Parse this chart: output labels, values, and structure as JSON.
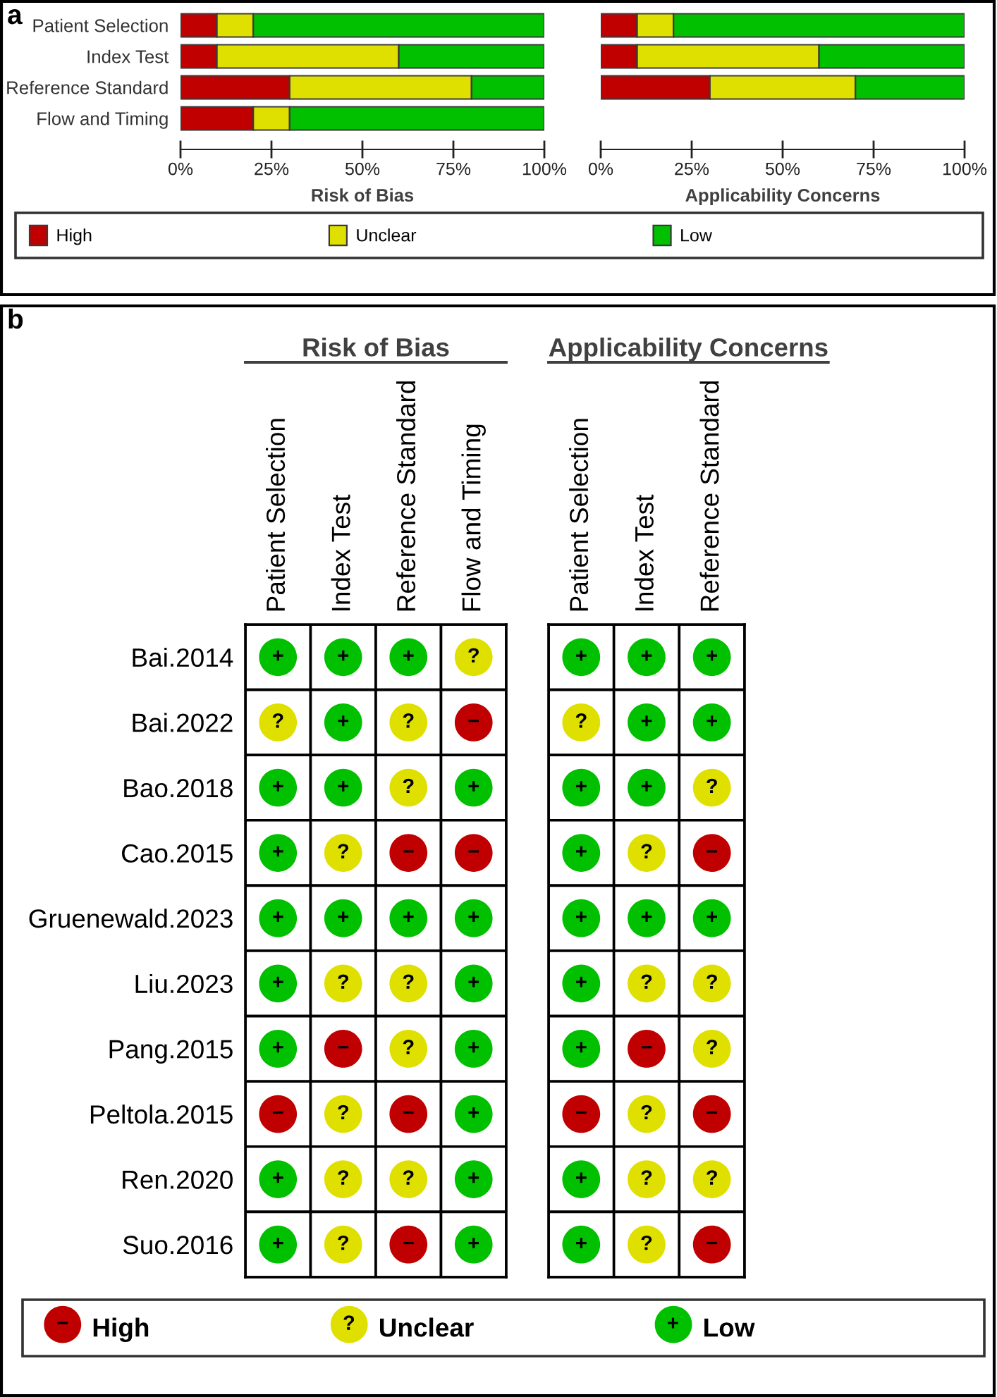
{
  "chart_data": [
    {
      "type": "bar",
      "orientation": "horizontal",
      "stacked": true,
      "categories": [
        "Patient Selection",
        "Index Test",
        "Reference Standard",
        "Flow and Timing"
      ],
      "series": [
        {
          "name": "High",
          "color": "#c00000",
          "values": [
            10,
            10,
            30,
            20
          ]
        },
        {
          "name": "Unclear",
          "color": "#e0e000",
          "values": [
            10,
            50,
            50,
            10
          ]
        },
        {
          "name": "Low",
          "color": "#00c000",
          "values": [
            80,
            40,
            20,
            70
          ]
        }
      ],
      "xlim": [
        0,
        100
      ],
      "xticks": [
        {
          "value": 0,
          "label": "0%"
        },
        {
          "value": 25,
          "label": "25%"
        },
        {
          "value": 50,
          "label": "50%"
        },
        {
          "value": 75,
          "label": "75%"
        },
        {
          "value": 100,
          "label": "100%"
        }
      ],
      "xlabel": "Risk of Bias",
      "legend": "bottom",
      "annotations": [
        "a"
      ]
    },
    {
      "type": "bar",
      "orientation": "horizontal",
      "stacked": true,
      "categories": [
        null,
        null,
        null,
        null
      ],
      "series": [
        {
          "color": "#c00000",
          "values": [
            10,
            10,
            30,
            null
          ]
        },
        {
          "color": "#e0e000",
          "values": [
            10,
            50,
            40,
            null
          ]
        },
        {
          "color": "#00c000",
          "values": [
            80,
            40,
            30,
            null
          ]
        }
      ],
      "xlim": [
        0,
        100
      ],
      "xticks": [
        {
          "value": 0,
          "label": "0%"
        },
        {
          "value": 25,
          "label": "25%"
        },
        {
          "value": 50,
          "label": "50%"
        },
        {
          "value": 75,
          "label": "75%"
        },
        {
          "value": 100,
          "label": "100%"
        }
      ],
      "xlabel": "Applicability Concerns"
    },
    {
      "type": "heatmap",
      "title": "Risk of Bias",
      "categories": [
        "Patient Selection",
        "Index Test",
        "Reference Standard",
        "Flow and Timing"
      ],
      "y_categories": [
        "Bai.2014",
        "Bai.2022",
        "Bao.2018",
        "Cao.2015",
        "Gruenewald.2023",
        "Liu.2023",
        "Pang.2015",
        "Peltola.2015",
        "Ren.2020",
        "Suo.2016"
      ],
      "cells": [
        [
          "+",
          "+",
          "+",
          "?"
        ],
        [
          "?",
          "+",
          "?",
          "−"
        ],
        [
          "+",
          "+",
          "?",
          "+"
        ],
        [
          "+",
          "?",
          "−",
          "−"
        ],
        [
          "+",
          "+",
          "+",
          "+"
        ],
        [
          "+",
          "?",
          "?",
          "+"
        ],
        [
          "+",
          "−",
          "?",
          "+"
        ],
        [
          "−",
          "?",
          "−",
          "+"
        ],
        [
          "+",
          "?",
          "?",
          "+"
        ],
        [
          "+",
          "?",
          "−",
          "+"
        ]
      ],
      "cticks": [
        {
          "value": "−",
          "label": "High"
        },
        {
          "value": "?",
          "label": "Unclear"
        },
        {
          "value": "+",
          "label": "Low"
        }
      ],
      "colors": [
        "#c00000",
        "#e0e000",
        "#00c000"
      ],
      "annotations": [
        "b"
      ]
    },
    {
      "type": "heatmap",
      "title": "Applicability Concerns",
      "categories": [
        "Patient Selection",
        "Index Test",
        "Reference Standard"
      ],
      "y_categories": [
        null,
        null,
        null,
        null,
        null,
        null,
        null,
        null,
        null,
        null
      ],
      "cells": [
        [
          "+",
          "+",
          "+"
        ],
        [
          "?",
          "+",
          "+"
        ],
        [
          "+",
          "+",
          "?"
        ],
        [
          "+",
          "?",
          "−"
        ],
        [
          "+",
          "+",
          "+"
        ],
        [
          "+",
          "?",
          "?"
        ],
        [
          "+",
          "−",
          "?"
        ],
        [
          "−",
          "?",
          "−"
        ],
        [
          "+",
          "?",
          "?"
        ],
        [
          "+",
          "?",
          "−"
        ]
      ]
    }
  ]
}
